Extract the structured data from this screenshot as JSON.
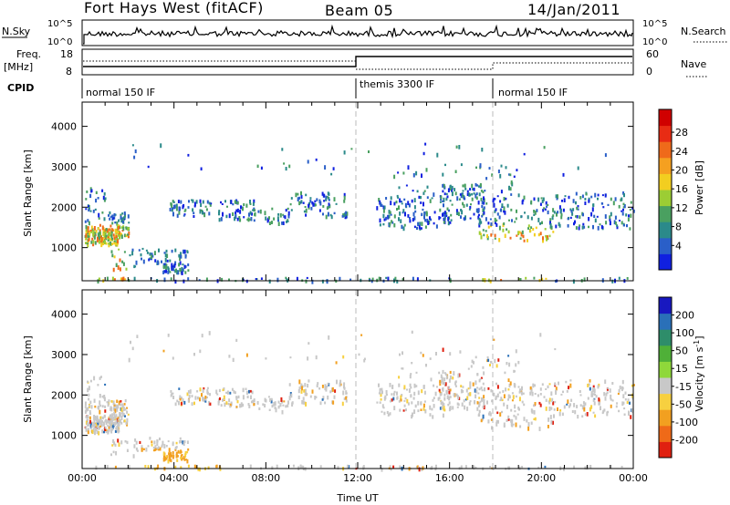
{
  "header": {
    "station": "Fort Hays West (fitACF)",
    "beam": "Beam 05",
    "date": "14/Jan/2011"
  },
  "top_panels": {
    "nsky_label": "N.Sky",
    "nsky_ticks": [
      "10^5",
      "10^0"
    ],
    "nsearch_label": "N.Search",
    "nsearch_ticks": [
      "10^5",
      "10^0"
    ],
    "freq_label": "Freq.",
    "freq_unit": "[MHz]",
    "freq_ticks": [
      "18",
      "8"
    ],
    "nave_label": "Nave",
    "nave_ticks": [
      "60",
      "0"
    ],
    "cpid_label": "CPID",
    "cpid_segments": [
      {
        "label": "normal 150 IF",
        "start_hour": 0
      },
      {
        "label": "themis 3300 IF",
        "start_hour": 12
      },
      {
        "label": "normal 150 IF",
        "start_hour": 18
      }
    ]
  },
  "chart_data": [
    {
      "type": "heatmap",
      "name": "power",
      "ylabel": "Slant Range [km]",
      "y_ticks": [
        "1000",
        "2000",
        "3000",
        "4000"
      ],
      "ylim": [
        180,
        4600
      ],
      "xlim_hours": [
        0,
        24
      ],
      "colorbar_label": "Power [dB]",
      "colorbar_ticks": [
        "4",
        "8",
        "12",
        "16",
        "20",
        "24",
        "28"
      ],
      "colorbar_colors": [
        "#1020e0",
        "#2a5fc8",
        "#2b8a8a",
        "#4aa060",
        "#9ccd34",
        "#f2ce20",
        "#f5a020",
        "#ef6a1a",
        "#e82c14",
        "#d00000"
      ]
    },
    {
      "type": "heatmap",
      "name": "velocity",
      "ylabel": "Slant Range [km]",
      "y_ticks": [
        "1000",
        "2000",
        "3000",
        "4000"
      ],
      "ylim": [
        180,
        4600
      ],
      "xlim_hours": [
        0,
        24
      ],
      "xlabel": "Time UT",
      "x_ticks": [
        "00:00",
        "04:00",
        "08:00",
        "12:00",
        "16:00",
        "20:00",
        "00:00"
      ],
      "colorbar_label": "Velocity [m s-1]",
      "colorbar_ticks": [
        "200",
        "100",
        "50",
        "15",
        "-15",
        "-50",
        "-100",
        "-200"
      ],
      "colorbar_colors": [
        "#1818c0",
        "#2a70b8",
        "#2e8d6a",
        "#4fb038",
        "#8fd83a",
        "#c8c8c8",
        "#f7d040",
        "#f2a020",
        "#ef6a18",
        "#e02010"
      ]
    }
  ]
}
